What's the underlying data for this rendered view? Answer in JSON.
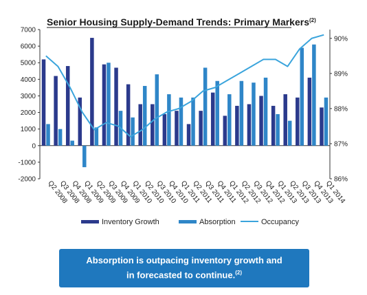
{
  "colors": {
    "inventory": "#2b3a8c",
    "absorption": "#2f86c8",
    "occupancy": "#3aa4dc",
    "callout_bg": "#1f78be",
    "title_underline": "#1a1a1a"
  },
  "callout": {
    "line1": "Absorption is outpacing inventory growth and",
    "line2": "in forecasted to continue.",
    "line2_sup": "(2)"
  },
  "chart_data": {
    "type": "bar",
    "title": "Senior Housing Supply-Demand Trends: Primary Markers",
    "title_sup": "(2)",
    "categories": [
      "Q2 2008",
      "Q3 2008",
      "Q4 2008",
      "Q1 2009",
      "Q2 2009",
      "Q3 2009",
      "Q4 2009",
      "Q1 2010",
      "Q2 2010",
      "Q3 2010",
      "Q4 2010",
      "Q1 2011",
      "Q2 2011",
      "Q3 2011",
      "Q4 2011",
      "Q1 2012",
      "Q2 2012",
      "Q3 2012",
      "Q4 2012",
      "Q1 2013",
      "Q2 2013",
      "Q3 2013",
      "Q4 2013",
      "Q1 2014"
    ],
    "y_left": {
      "min": -2000,
      "max": 7000,
      "step": 1000,
      "ticks": [
        "7000",
        "6000",
        "5000",
        "4000",
        "3000",
        "2000",
        "1000",
        "0",
        "-1000",
        "-2000"
      ]
    },
    "y_right": {
      "min": 86,
      "max": 90.25,
      "ticks": [
        {
          "value": 90,
          "label": "90%"
        },
        {
          "value": 89,
          "label": "89%"
        },
        {
          "value": 88,
          "label": "88%"
        },
        {
          "value": 87,
          "label": "87%"
        },
        {
          "value": 86,
          "label": "86%"
        }
      ]
    },
    "legend_position": "bottom",
    "grid": false,
    "series": [
      {
        "name": "Inventory Growth",
        "type": "bar",
        "axis": "left",
        "values": [
          5200,
          4200,
          4800,
          2900,
          6500,
          4900,
          4700,
          3700,
          2500,
          2500,
          1900,
          2100,
          1300,
          2100,
          3200,
          1800,
          2400,
          2500,
          3000,
          2400,
          3100,
          2900,
          4100,
          2300
        ]
      },
      {
        "name": "Absorption",
        "type": "bar",
        "axis": "left",
        "values": [
          1300,
          1000,
          300,
          -1300,
          1100,
          5000,
          2100,
          1700,
          3600,
          4300,
          3100,
          2900,
          2900,
          4700,
          3900,
          3100,
          3900,
          3800,
          4100,
          1900,
          1500,
          5900,
          6100,
          2900
        ]
      },
      {
        "name": "Occupancy",
        "type": "line",
        "axis": "right",
        "values": [
          89.5,
          89.2,
          88.6,
          87.9,
          87.4,
          87.6,
          87.5,
          87.2,
          87.4,
          87.7,
          87.9,
          88.0,
          88.2,
          88.5,
          88.6,
          88.8,
          89.0,
          89.2,
          89.4,
          89.4,
          89.2,
          89.7,
          90.0,
          90.1
        ]
      }
    ]
  }
}
